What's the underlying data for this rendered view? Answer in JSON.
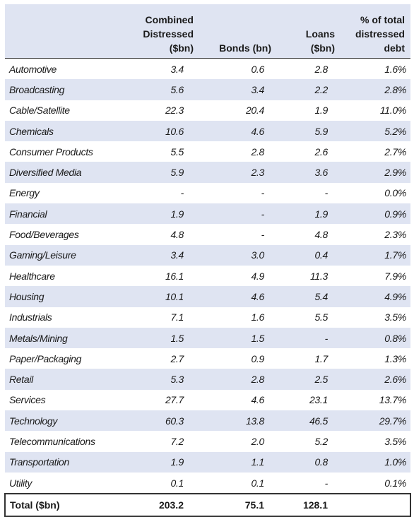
{
  "headers": {
    "sector": "",
    "combined": [
      "Combined",
      "Distressed",
      "($bn)"
    ],
    "bonds": [
      "Bonds (bn)"
    ],
    "loans": [
      "Loans",
      "($bn)"
    ],
    "pct": [
      "% of total",
      "distressed",
      "debt"
    ]
  },
  "rows": [
    {
      "sector": "Automotive",
      "combined": "3.4",
      "bonds": "0.6",
      "loans": "2.8",
      "pct": "1.6%"
    },
    {
      "sector": "Broadcasting",
      "combined": "5.6",
      "bonds": "3.4",
      "loans": "2.2",
      "pct": "2.8%"
    },
    {
      "sector": "Cable/Satellite",
      "combined": "22.3",
      "bonds": "20.4",
      "loans": "1.9",
      "pct": "11.0%"
    },
    {
      "sector": "Chemicals",
      "combined": "10.6",
      "bonds": "4.6",
      "loans": "5.9",
      "pct": "5.2%"
    },
    {
      "sector": "Consumer Products",
      "combined": "5.5",
      "bonds": "2.8",
      "loans": "2.6",
      "pct": "2.7%"
    },
    {
      "sector": "Diversified Media",
      "combined": "5.9",
      "bonds": "2.3",
      "loans": "3.6",
      "pct": "2.9%"
    },
    {
      "sector": "Energy",
      "combined": "-",
      "bonds": "-",
      "loans": "-",
      "pct": "0.0%"
    },
    {
      "sector": "Financial",
      "combined": "1.9",
      "bonds": "-",
      "loans": "1.9",
      "pct": "0.9%"
    },
    {
      "sector": "Food/Beverages",
      "combined": "4.8",
      "bonds": "-",
      "loans": "4.8",
      "pct": "2.3%"
    },
    {
      "sector": "Gaming/Leisure",
      "combined": "3.4",
      "bonds": "3.0",
      "loans": "0.4",
      "pct": "1.7%"
    },
    {
      "sector": "Healthcare",
      "combined": "16.1",
      "bonds": "4.9",
      "loans": "11.3",
      "pct": "7.9%"
    },
    {
      "sector": "Housing",
      "combined": "10.1",
      "bonds": "4.6",
      "loans": "5.4",
      "pct": "4.9%"
    },
    {
      "sector": "Industrials",
      "combined": "7.1",
      "bonds": "1.6",
      "loans": "5.5",
      "pct": "3.5%"
    },
    {
      "sector": "Metals/Mining",
      "combined": "1.5",
      "bonds": "1.5",
      "loans": "-",
      "pct": "0.8%"
    },
    {
      "sector": "Paper/Packaging",
      "combined": "2.7",
      "bonds": "0.9",
      "loans": "1.7",
      "pct": "1.3%"
    },
    {
      "sector": "Retail",
      "combined": "5.3",
      "bonds": "2.8",
      "loans": "2.5",
      "pct": "2.6%"
    },
    {
      "sector": "Services",
      "combined": "27.7",
      "bonds": "4.6",
      "loans": "23.1",
      "pct": "13.7%"
    },
    {
      "sector": "Technology",
      "combined": "60.3",
      "bonds": "13.8",
      "loans": "46.5",
      "pct": "29.7%"
    },
    {
      "sector": "Telecommunications",
      "combined": "7.2",
      "bonds": "2.0",
      "loans": "5.2",
      "pct": "3.5%"
    },
    {
      "sector": "Transportation",
      "combined": "1.9",
      "bonds": "1.1",
      "loans": "0.8",
      "pct": "1.0%"
    },
    {
      "sector": "Utility",
      "combined": "0.1",
      "bonds": "0.1",
      "loans": "-",
      "pct": "0.1%"
    }
  ],
  "total": {
    "sector": "Total ($bn)",
    "combined": "203.2",
    "bonds": "75.1",
    "loans": "128.1",
    "pct": ""
  },
  "colors": {
    "shade": "#dfe4f2",
    "text": "#1a1a1a",
    "rule": "#333333"
  }
}
